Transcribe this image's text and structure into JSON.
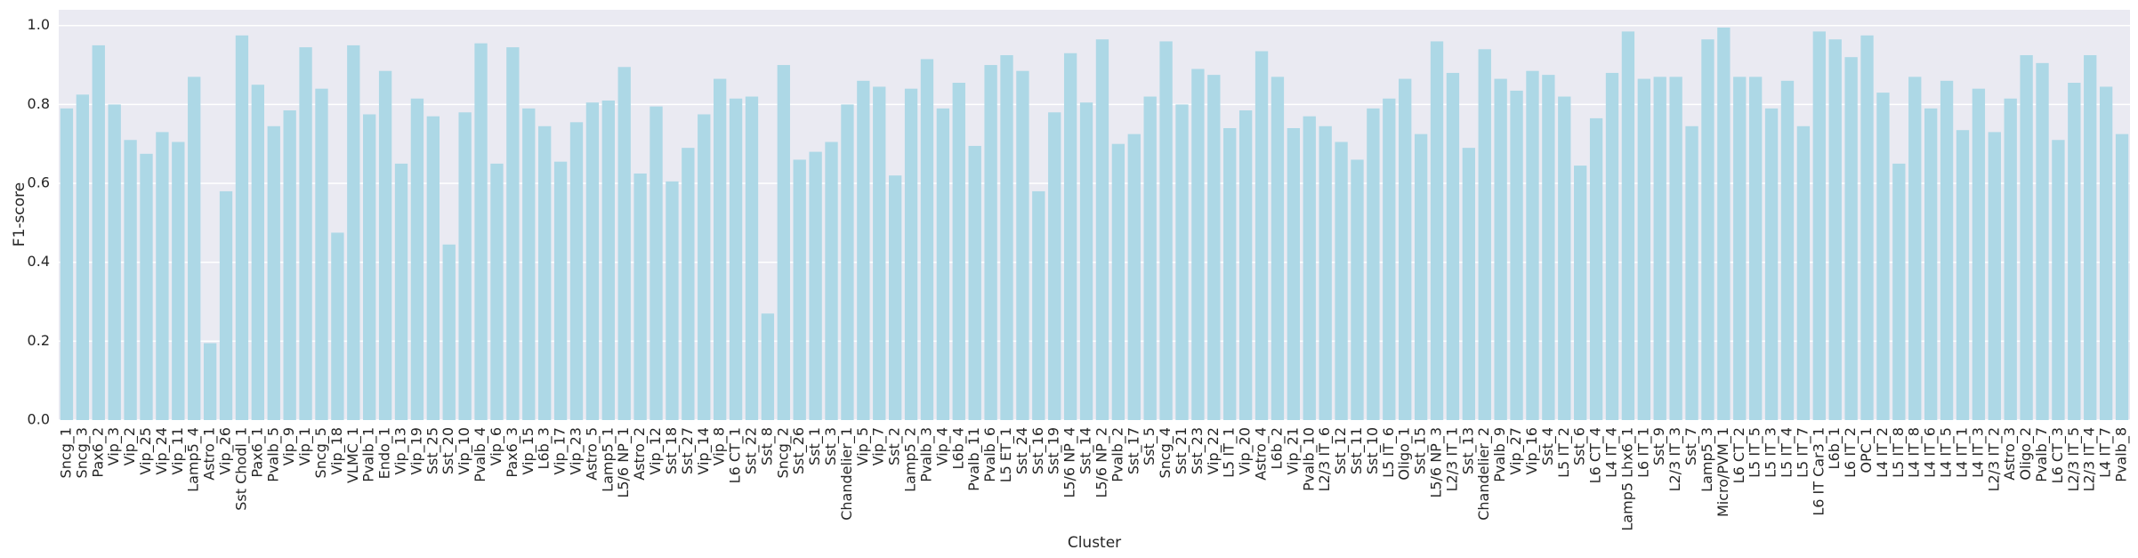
{
  "chart_data": {
    "type": "bar",
    "x_label": "Cluster",
    "y_label": "F1-score",
    "categories": [
      "Sncg_1",
      "Sncg_3",
      "Pax6_2",
      "Vip_3",
      "Vip_2",
      "Vip_25",
      "Vip_24",
      "Vip_11",
      "Lamp5_4",
      "Astro_1",
      "Vip_26",
      "Sst Chodl_1",
      "Pax6_1",
      "Pvalb_5",
      "Vip_9",
      "Vip_1",
      "Sncg_5",
      "Vip_18",
      "VLMC_1",
      "Pvalb_1",
      "Endo_1",
      "Vip_13",
      "Vip_19",
      "Sst_25",
      "Sst_20",
      "Vip_10",
      "Pvalb_4",
      "Vip_6",
      "Pax6_3",
      "Vip_15",
      "L6b_3",
      "Vip_17",
      "Vip_23",
      "Astro_5",
      "Lamp5_1",
      "L5/6 NP_1",
      "Astro_2",
      "Vip_12",
      "Sst_18",
      "Sst_27",
      "Vip_14",
      "Vip_8",
      "L6 CT_1",
      "Sst_22",
      "Sst_8",
      "Sncg_2",
      "Sst_26",
      "Sst_1",
      "Sst_3",
      "Chandelier_1",
      "Vip_5",
      "Vip_7",
      "Sst_2",
      "Lamp5_2",
      "Pvalb_3",
      "Vip_4",
      "L6b_4",
      "Pvalb_11",
      "Pvalb_6",
      "L5 ET_1",
      "Sst_24",
      "Sst_16",
      "Sst_19",
      "L5/6 NP_4",
      "Sst_14",
      "L5/6 NP_2",
      "Pvalb_2",
      "Sst_17",
      "Sst_5",
      "Sncg_4",
      "Sst_21",
      "Sst_23",
      "Vip_22",
      "L5 IT_1",
      "Vip_20",
      "Astro_4",
      "L6b_2",
      "Vip_21",
      "Pvalb_10",
      "L2/3 IT_6",
      "Sst_12",
      "Sst_11",
      "Sst_10",
      "L5 IT_6",
      "Oligo_1",
      "Sst_15",
      "L5/6 NP_3",
      "L2/3 IT_1",
      "Sst_13",
      "Chandelier_2",
      "Pvalb_9",
      "Vip_27",
      "Vip_16",
      "Sst_4",
      "L5 IT_2",
      "Sst_6",
      "L6 CT_4",
      "L4 IT_4",
      "Lamp5 Lhx6_1",
      "L6 IT_1",
      "Sst_9",
      "L2/3 IT_3",
      "Sst_7",
      "Lamp5_3",
      "Micro/PVM_1",
      "L6 CT_2",
      "L5 IT_5",
      "L5 IT_3",
      "L5 IT_4",
      "L5 IT_7",
      "L6 IT Car3_1",
      "L6b_1",
      "L6 IT_2",
      "OPC_1",
      "L4 IT_2",
      "L5 IT_8",
      "L4 IT_8",
      "L4 IT_6",
      "L4 IT_5",
      "L4 IT_1",
      "L4 IT_3",
      "L2/3 IT_2",
      "Astro_3",
      "Oligo_2",
      "Pvalb_7",
      "L6 CT_3",
      "L2/3 IT_5",
      "L2/3 IT_4",
      "L4 IT_7",
      "Pvalb_8"
    ],
    "values": [
      0.79,
      0.825,
      0.95,
      0.8,
      0.71,
      0.675,
      0.73,
      0.705,
      0.87,
      0.195,
      0.58,
      0.975,
      0.85,
      0.745,
      0.785,
      0.945,
      0.84,
      0.475,
      0.95,
      0.775,
      0.885,
      0.65,
      0.815,
      0.77,
      0.445,
      0.78,
      0.955,
      0.65,
      0.945,
      0.79,
      0.745,
      0.655,
      0.755,
      0.805,
      0.81,
      0.895,
      0.625,
      0.795,
      0.605,
      0.69,
      0.775,
      0.865,
      0.815,
      0.82,
      0.27,
      0.9,
      0.66,
      0.68,
      0.705,
      0.8,
      0.86,
      0.845,
      0.62,
      0.84,
      0.915,
      0.79,
      0.855,
      0.695,
      0.9,
      0.925,
      0.885,
      0.58,
      0.78,
      0.93,
      0.805,
      0.965,
      0.7,
      0.725,
      0.82,
      0.96,
      0.8,
      0.89,
      0.875,
      0.74,
      0.785,
      0.935,
      0.87,
      0.74,
      0.77,
      0.745,
      0.705,
      0.66,
      0.79,
      0.815,
      0.865,
      0.725,
      0.96,
      0.88,
      0.69,
      0.94,
      0.865,
      0.835,
      0.885,
      0.875,
      0.82,
      0.645,
      0.765,
      0.88,
      0.985,
      0.865,
      0.87,
      0.87,
      0.745,
      0.965,
      0.995,
      0.87,
      0.87,
      0.79,
      0.86,
      0.745,
      0.985,
      0.965,
      0.92,
      0.975,
      0.83,
      0.65,
      0.87,
      0.79,
      0.86,
      0.735,
      0.84,
      0.73,
      0.815,
      0.925,
      0.905,
      0.71,
      0.855,
      0.925,
      0.845,
      0.725
    ],
    "color": "#add8e6",
    "ylim": [
      0,
      1.04
    ],
    "yticks": [
      {
        "value": 0,
        "label": "0.0"
      },
      0.2,
      0.4,
      0.6,
      0.8,
      {
        "value": 1,
        "label": "1.0"
      }
    ],
    "grid": true
  }
}
